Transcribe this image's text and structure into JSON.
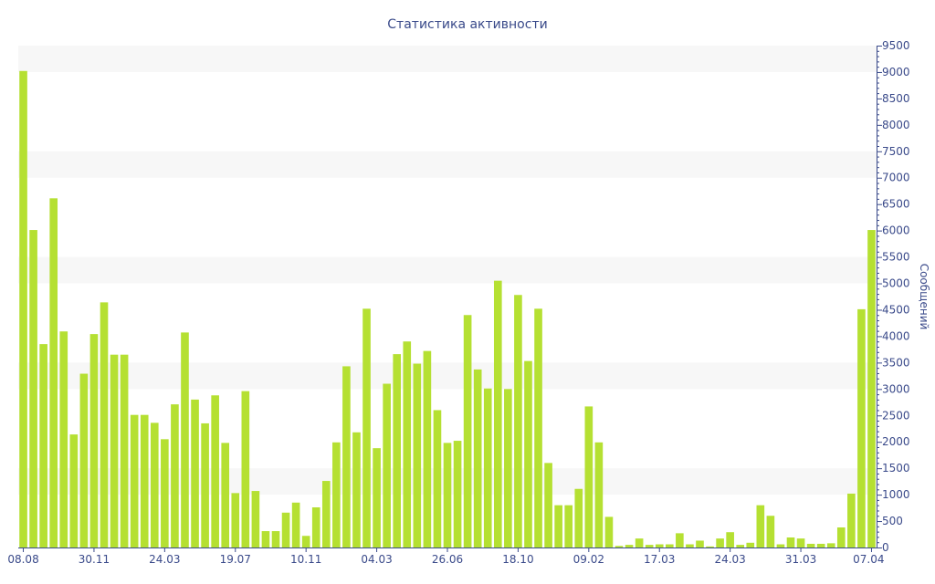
{
  "chart_data": {
    "type": "bar",
    "title": "Статистика активности",
    "xlabel": "",
    "ylabel": "Сообщений",
    "ylim": [
      0,
      9500
    ],
    "y_ticks": [
      0,
      500,
      1000,
      1500,
      2000,
      2500,
      3000,
      3500,
      4000,
      4500,
      5000,
      5500,
      6000,
      6500,
      7000,
      7500,
      8000,
      8500,
      9000,
      9500
    ],
    "x_tick_labels": [
      {
        "index": 0,
        "label": "08.08"
      },
      {
        "index": 7,
        "label": "30.11"
      },
      {
        "index": 14,
        "label": "24.03"
      },
      {
        "index": 21,
        "label": "19.07"
      },
      {
        "index": 28,
        "label": "10.11"
      },
      {
        "index": 35,
        "label": "04.03"
      },
      {
        "index": 42,
        "label": "26.06"
      },
      {
        "index": 49,
        "label": "18.10"
      },
      {
        "index": 56,
        "label": "09.02"
      },
      {
        "index": 63,
        "label": "17.03"
      },
      {
        "index": 70,
        "label": "24.03"
      },
      {
        "index": 77,
        "label": "31.03"
      },
      {
        "index": 84,
        "label": "07.04"
      }
    ],
    "grid": "horizontal bands",
    "y_axis_position": "right",
    "colors": {
      "bar": "#b5e032",
      "band": "#f7f7f7",
      "axis": "#3a4a8a",
      "text": "#3a4a8a"
    },
    "values": [
      9020,
      6010,
      3850,
      6610,
      4090,
      2140,
      3290,
      4040,
      4640,
      3650,
      3650,
      2510,
      2510,
      2360,
      2050,
      2710,
      4070,
      2800,
      2350,
      2880,
      1980,
      1030,
      2960,
      1070,
      310,
      310,
      660,
      850,
      220,
      760,
      1260,
      1990,
      3430,
      2180,
      4520,
      1880,
      3100,
      3660,
      3900,
      3480,
      3720,
      2600,
      1980,
      2020,
      4400,
      3370,
      3010,
      5050,
      3000,
      4780,
      3530,
      4520,
      1600,
      800,
      800,
      1110,
      2670,
      1990,
      580,
      30,
      50,
      170,
      50,
      60,
      60,
      270,
      60,
      130,
      20,
      170,
      290,
      50,
      90,
      800,
      600,
      60,
      190,
      170,
      70,
      70,
      80,
      380,
      1020,
      4510,
      6010
    ]
  }
}
